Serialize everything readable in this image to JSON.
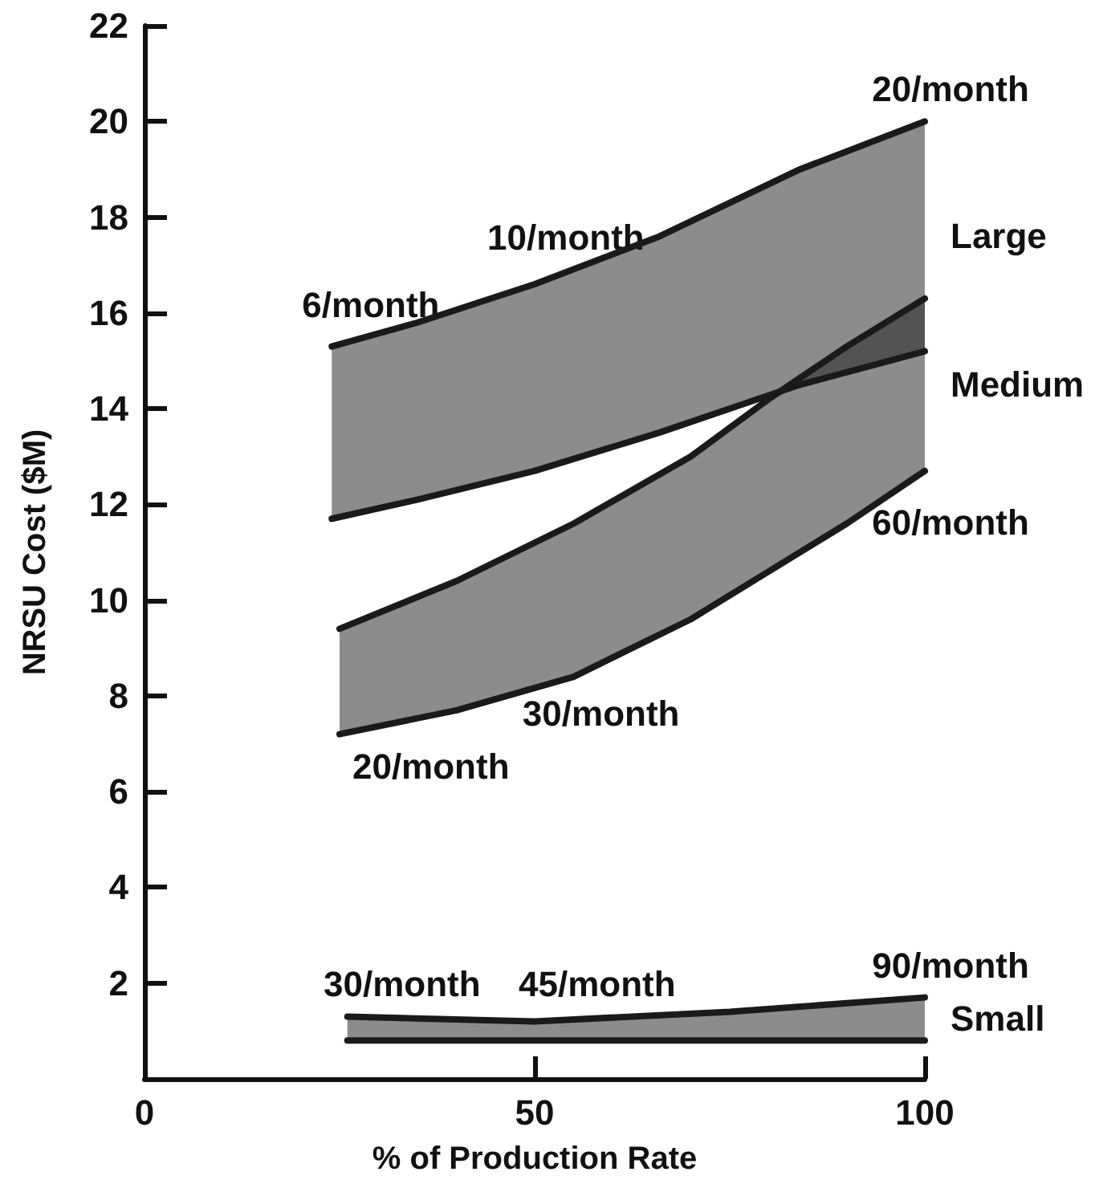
{
  "chart_data": {
    "type": "line",
    "xlabel": "% of Production Rate",
    "ylabel": "NRSU Cost ($M)",
    "xlim": [
      0,
      100
    ],
    "ylim": [
      0,
      22
    ],
    "xticks": [
      0,
      50,
      100
    ],
    "yticks": [
      2,
      4,
      6,
      8,
      10,
      12,
      14,
      16,
      18,
      20,
      22
    ],
    "series": [
      {
        "name": "Large",
        "color": "#1a1a1a",
        "x": [
          24,
          35,
          50,
          66,
          84,
          100
        ],
        "values": [
          15.3,
          15.8,
          16.6,
          17.6,
          19.0,
          20.0
        ],
        "lower": [
          11.7,
          12.1,
          12.7,
          13.5,
          14.5,
          15.2
        ],
        "upper": [
          15.3,
          15.8,
          16.6,
          17.6,
          19.0,
          20.0
        ]
      },
      {
        "name": "Medium",
        "color": "#1a1a1a",
        "x": [
          25,
          40,
          55,
          70,
          80,
          90,
          100
        ],
        "values": [
          9.4,
          10.4,
          11.6,
          13.0,
          14.2,
          15.3,
          16.3
        ],
        "lower": [
          7.2,
          7.7,
          8.4,
          9.6,
          10.6,
          11.6,
          12.7
        ],
        "upper": [
          9.4,
          10.4,
          11.6,
          13.0,
          14.2,
          15.3,
          16.3
        ]
      },
      {
        "name": "Small",
        "color": "#1a1a1a",
        "x": [
          26,
          50,
          75,
          100
        ],
        "values": [
          1.3,
          1.2,
          1.4,
          1.7
        ],
        "lower": [
          0.8,
          0.8,
          0.8,
          0.8
        ],
        "upper": [
          1.3,
          1.2,
          1.4,
          1.7
        ]
      }
    ],
    "annotations": [
      {
        "text": "6/month",
        "x": 29,
        "y": 15.5
      },
      {
        "text": "10/month",
        "x": 54,
        "y": 16.9
      },
      {
        "text": "20/month",
        "x": 100,
        "y": 20.0
      },
      {
        "text": "60/month",
        "x": 100,
        "y": 12.7
      },
      {
        "text": "30/month",
        "x": 58.5,
        "y": 8.7
      },
      {
        "text": "20/month",
        "x": 36.7,
        "y": 7.6
      },
      {
        "text": "30/month",
        "x": 33,
        "y": 1.3
      },
      {
        "text": "45/month",
        "x": 58,
        "y": 1.3
      },
      {
        "text": "90/month",
        "x": 100,
        "y": 1.7
      }
    ]
  }
}
